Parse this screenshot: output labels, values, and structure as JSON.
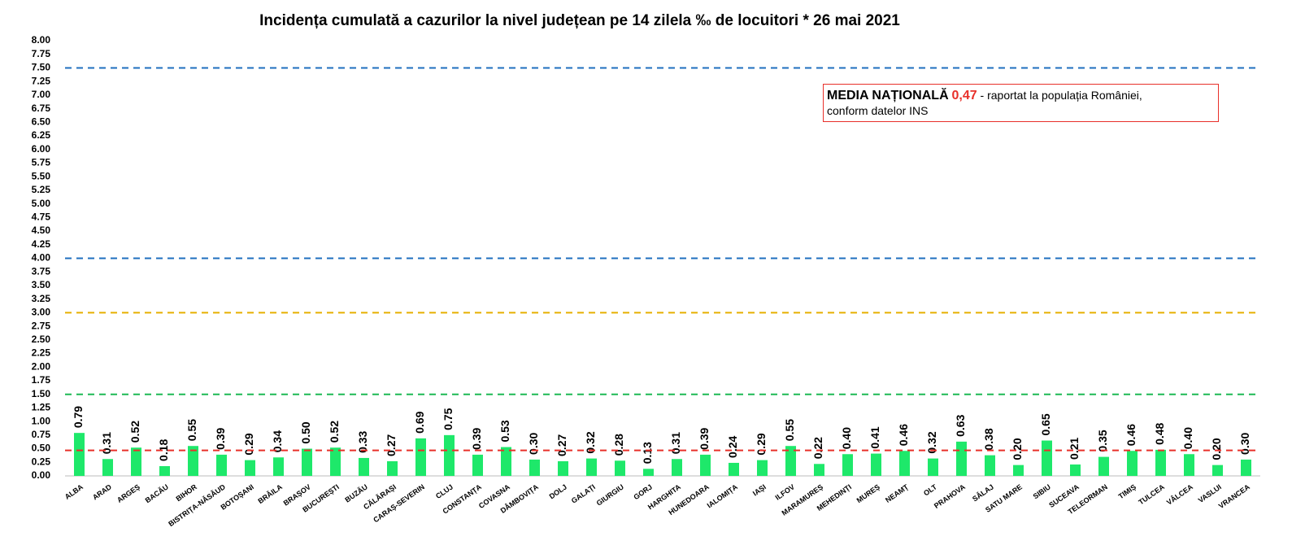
{
  "chart_data": {
    "type": "bar",
    "title": "Incidența cumulată a cazurilor la nivel județean pe 14 zilela ‰ de locuitori *  26 mai 2021",
    "categories": [
      "ALBA",
      "ARAD",
      "ARGEȘ",
      "BACĂU",
      "BIHOR",
      "BISTRIȚA-NĂSĂUD",
      "BOTOȘANI",
      "BRĂILA",
      "BRAȘOV",
      "BUCUREȘTI",
      "BUZĂU",
      "CĂLĂRAȘI",
      "CARAȘ-SEVERIN",
      "CLUJ",
      "CONSTANȚA",
      "COVASNA",
      "DÂMBOVIȚA",
      "DOLJ",
      "GALAȚI",
      "GIURGIU",
      "GORJ",
      "HARGHITA",
      "HUNEDOARA",
      "IALOMIȚA",
      "IAȘI",
      "ILFOV",
      "MARAMUREȘ",
      "MEHEDINȚI",
      "MUREȘ",
      "NEAMȚ",
      "OLT",
      "PRAHOVA",
      "SĂLAJ",
      "SATU MARE",
      "SIBIU",
      "SUCEAVA",
      "TELEORMAN",
      "TIMIȘ",
      "TULCEA",
      "VÂLCEA",
      "VASLUI",
      "VRANCEA"
    ],
    "values": [
      0.79,
      0.31,
      0.52,
      0.18,
      0.55,
      0.39,
      0.29,
      0.34,
      0.5,
      0.52,
      0.33,
      0.27,
      0.69,
      0.75,
      0.39,
      0.53,
      0.3,
      0.27,
      0.32,
      0.28,
      0.13,
      0.31,
      0.39,
      0.24,
      0.29,
      0.55,
      0.22,
      0.4,
      0.41,
      0.46,
      0.32,
      0.63,
      0.38,
      0.2,
      0.65,
      0.21,
      0.35,
      0.46,
      0.48,
      0.4,
      0.2,
      0.3
    ],
    "value_labels": [
      "0.79",
      "0.31",
      "0.52",
      "0.18",
      "0.55",
      "0.39",
      "0.29",
      "0.34",
      "0.50",
      "0.52",
      "0.33",
      "0.27",
      "0.69",
      "0.75",
      "0.39",
      "0.53",
      "0.30",
      "0.27",
      "0.32",
      "0.28",
      "0.13",
      "0.31",
      "0.39",
      "0.24",
      "0.29",
      "0.55",
      "0.22",
      "0.40",
      "0.41",
      "0.46",
      "0.32",
      "0.63",
      "0.38",
      "0.20",
      "0.65",
      "0.21",
      "0.35",
      "0.46",
      "0.48",
      "0.40",
      "0.20",
      "0.30"
    ],
    "color": "#1ee86a",
    "ylim": [
      0,
      8
    ],
    "yticks": [
      {
        "value": 0,
        "label": "0.00"
      },
      {
        "value": 0.25,
        "label": "0.25"
      },
      {
        "value": 0.5,
        "label": "0.50"
      },
      {
        "value": 0.75,
        "label": "0.75"
      },
      {
        "value": 1,
        "label": "1.00"
      },
      {
        "value": 1.25,
        "label": "1.25"
      },
      {
        "value": 1.5,
        "label": "1.50"
      },
      {
        "value": 1.75,
        "label": "1.75"
      },
      {
        "value": 2,
        "label": "2.00"
      },
      {
        "value": 2.25,
        "label": "2.25"
      },
      {
        "value": 2.5,
        "label": "2.50"
      },
      {
        "value": 2.75,
        "label": "2.75"
      },
      {
        "value": 3,
        "label": "3.00"
      },
      {
        "value": 3.25,
        "label": "3.25"
      },
      {
        "value": 3.5,
        "label": "3.50"
      },
      {
        "value": 3.75,
        "label": "3.75"
      },
      {
        "value": 4,
        "label": "4.00"
      },
      {
        "value": 4.25,
        "label": "4.25"
      },
      {
        "value": 4.5,
        "label": "4.50"
      },
      {
        "value": 4.75,
        "label": "4.75"
      },
      {
        "value": 5,
        "label": "5.00"
      },
      {
        "value": 5.25,
        "label": "5.25"
      },
      {
        "value": 5.5,
        "label": "5.50"
      },
      {
        "value": 5.75,
        "label": "5.75"
      },
      {
        "value": 6,
        "label": "6.00"
      },
      {
        "value": 6.25,
        "label": "6.25"
      },
      {
        "value": 6.5,
        "label": "6.50"
      },
      {
        "value": 6.75,
        "label": "6.75"
      },
      {
        "value": 7,
        "label": "7.00"
      },
      {
        "value": 7.25,
        "label": "7.25"
      },
      {
        "value": 7.5,
        "label": "7.50"
      },
      {
        "value": 7.75,
        "label": "7.75"
      },
      {
        "value": 8,
        "label": "8.00"
      }
    ],
    "reference_lines": [
      {
        "value": 7.5,
        "color": "#1f6fbf"
      },
      {
        "value": 4,
        "color": "#1f6fbf"
      },
      {
        "value": 3,
        "color": "#e6b000"
      },
      {
        "value": 1.5,
        "color": "#1db954"
      },
      {
        "value": 0.47,
        "color": "#e8302a"
      }
    ],
    "annotation": {
      "title": "MEDIA NAȚIONALĂ",
      "value": "0,47",
      "text": "- raportat la populația României,",
      "text2": "conform datelor INS"
    }
  }
}
